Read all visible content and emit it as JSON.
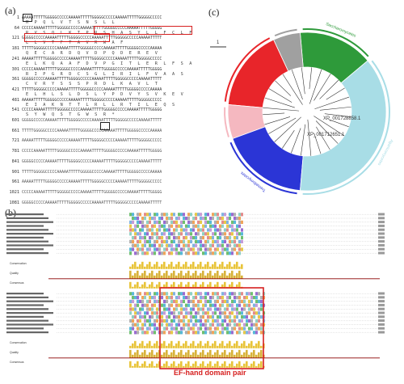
{
  "panel_labels": {
    "a": "(a)",
    "b": "(b)",
    "c": "(c)"
  },
  "sequence": {
    "rows": [
      {
        "num": "1",
        "aa": "M P Q L V T S N S L L"
      },
      {
        "num": "64",
        "aa": "R V S Q L K T P R S H A S Y L L F C L F"
      },
      {
        "num": "121",
        "aa": "L L V T F T A V R W A F"
      },
      {
        "num": "181",
        "aa": "Q E C A R D Q V D P Q D E R E V"
      },
      {
        "num": "241",
        "aa": "E L K Q A A F D V P G I T L E R L F S A"
      },
      {
        "num": "301",
        "aa": "R I P G R D C S G L I R I L F V A A S"
      },
      {
        "num": "361",
        "aa": "C V R Y S S S P R D L K A V L T"
      },
      {
        "num": "421",
        "aa": "E L H L S L D S L Y P D V Y S V K E V"
      },
      {
        "num": "481",
        "aa": "E I A K N T T L R L L R T I L E Q S"
      },
      {
        "num": "541",
        "aa": "S Y W Q S T G W S R *"
      },
      {
        "num": "601",
        "aa": ""
      },
      {
        "num": "661",
        "aa": ""
      },
      {
        "num": "721",
        "aa": ""
      },
      {
        "num": "781",
        "aa": ""
      },
      {
        "num": "841",
        "aa": ""
      },
      {
        "num": "901",
        "aa": ""
      },
      {
        "num": "961",
        "aa": ""
      },
      {
        "num": "1021",
        "aa": ""
      },
      {
        "num": "1081",
        "aa": ""
      }
    ]
  },
  "tree": {
    "scale": "1",
    "clades": [
      {
        "color": "#2e9a3a",
        "label": "Saccharomycetes"
      },
      {
        "color": "#a0a0a0",
        "label": ""
      },
      {
        "color": "#e8252a",
        "label": ""
      },
      {
        "color": "#f5b8c0",
        "label": ""
      },
      {
        "color": "#2b35d6",
        "label": "Tremellomycetes"
      },
      {
        "color": "#a8dde6",
        "label": "Agaricomycetes"
      }
    ],
    "leaf_labels": [
      "XP_001728858.1",
      "XP_001712651.1"
    ]
  },
  "alignment": {
    "track_labels": [
      "Conservation",
      "Quality",
      "Consensus"
    ],
    "annotation": "EF-hand domain pair"
  }
}
